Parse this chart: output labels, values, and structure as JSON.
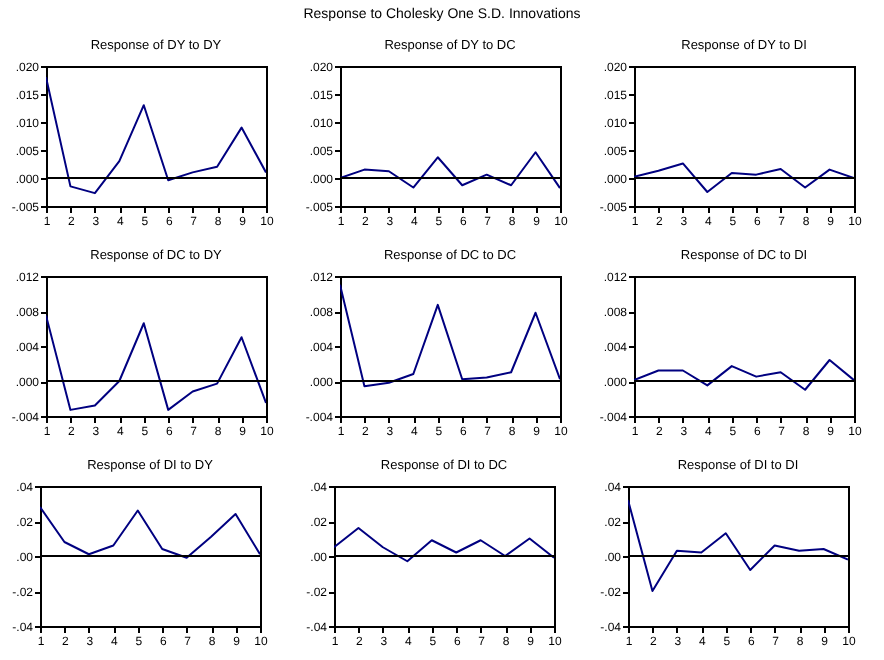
{
  "chart_data": [
    {
      "type": "line",
      "title": "Response of DY to DY",
      "annotations": [
        "Response to Cholesky One S.D. Innovations"
      ],
      "x": [
        1,
        2,
        3,
        4,
        5,
        6,
        7,
        8,
        9,
        10
      ],
      "xlim": [
        1,
        10
      ],
      "xticks": [
        1,
        2,
        3,
        4,
        5,
        6,
        7,
        8,
        9,
        10
      ],
      "ylim": [
        -0.005,
        0.02
      ],
      "yticks": [
        {
          "value": -0.005,
          "label": "-.005"
        },
        {
          "value": 0,
          "label": ".000"
        },
        {
          "value": 0.005,
          "label": ".005"
        },
        {
          "value": 0.01,
          "label": ".010"
        },
        {
          "value": 0.015,
          "label": ".015"
        },
        {
          "value": 0.02,
          "label": ".020"
        }
      ],
      "ref_lines": [
        {
          "axis": "y",
          "value": 0,
          "color": "#000000"
        }
      ],
      "series": [
        {
          "color": "#000080",
          "values": [
            0.018,
            -0.0015,
            -0.0027,
            0.003,
            0.013,
            -0.0004,
            0.001,
            0.002,
            0.009,
            0.001
          ]
        }
      ]
    },
    {
      "type": "line",
      "title": "Response of DY to DC",
      "x": [
        1,
        2,
        3,
        4,
        5,
        6,
        7,
        8,
        9,
        10
      ],
      "xlim": [
        1,
        10
      ],
      "xticks": [
        1,
        2,
        3,
        4,
        5,
        6,
        7,
        8,
        9,
        10
      ],
      "ylim": [
        -0.005,
        0.02
      ],
      "yticks": [
        {
          "value": -0.005,
          "label": "-.005"
        },
        {
          "value": 0,
          "label": ".000"
        },
        {
          "value": 0.005,
          "label": ".005"
        },
        {
          "value": 0.01,
          "label": ".010"
        },
        {
          "value": 0.015,
          "label": ".015"
        },
        {
          "value": 0.02,
          "label": ".020"
        }
      ],
      "ref_lines": [
        {
          "axis": "y",
          "value": 0,
          "color": "#000000"
        }
      ],
      "series": [
        {
          "color": "#000080",
          "values": [
            0.0,
            0.0015,
            0.0012,
            -0.0017,
            0.0037,
            -0.0013,
            0.0006,
            -0.0013,
            0.0046,
            -0.0018
          ]
        }
      ]
    },
    {
      "type": "line",
      "title": "Response of DY to DI",
      "x": [
        1,
        2,
        3,
        4,
        5,
        6,
        7,
        8,
        9,
        10
      ],
      "xlim": [
        1,
        10
      ],
      "xticks": [
        1,
        2,
        3,
        4,
        5,
        6,
        7,
        8,
        9,
        10
      ],
      "ylim": [
        -0.005,
        0.02
      ],
      "yticks": [
        {
          "value": -0.005,
          "label": "-.005"
        },
        {
          "value": 0,
          "label": ".000"
        },
        {
          "value": 0.005,
          "label": ".005"
        },
        {
          "value": 0.01,
          "label": ".010"
        },
        {
          "value": 0.015,
          "label": ".015"
        },
        {
          "value": 0.02,
          "label": ".020"
        }
      ],
      "ref_lines": [
        {
          "axis": "y",
          "value": 0,
          "color": "#000000"
        }
      ],
      "series": [
        {
          "color": "#000080",
          "values": [
            0.0002,
            0.0013,
            0.0026,
            -0.0025,
            0.0009,
            0.0006,
            0.0016,
            -0.0017,
            0.0015,
            0.0
          ]
        }
      ]
    },
    {
      "type": "line",
      "title": "Response of DC to DY",
      "x": [
        1,
        2,
        3,
        4,
        5,
        6,
        7,
        8,
        9,
        10
      ],
      "xlim": [
        1,
        10
      ],
      "xticks": [
        1,
        2,
        3,
        4,
        5,
        6,
        7,
        8,
        9,
        10
      ],
      "ylim": [
        -0.004,
        0.012
      ],
      "yticks": [
        {
          "value": -0.004,
          "label": "-.004"
        },
        {
          "value": 0,
          "label": ".000"
        },
        {
          "value": 0.004,
          "label": ".004"
        },
        {
          "value": 0.008,
          "label": ".008"
        },
        {
          "value": 0.012,
          "label": ".012"
        }
      ],
      "ref_lines": [
        {
          "axis": "y",
          "value": 0,
          "color": "#000000"
        }
      ],
      "series": [
        {
          "color": "#000080",
          "values": [
            0.0075,
            -0.0033,
            -0.0028,
            0.0,
            0.0066,
            -0.0033,
            -0.0012,
            -0.0003,
            0.005,
            -0.0025
          ]
        }
      ]
    },
    {
      "type": "line",
      "title": "Response of DC to DC",
      "x": [
        1,
        2,
        3,
        4,
        5,
        6,
        7,
        8,
        9,
        10
      ],
      "xlim": [
        1,
        10
      ],
      "xticks": [
        1,
        2,
        3,
        4,
        5,
        6,
        7,
        8,
        9,
        10
      ],
      "ylim": [
        -0.004,
        0.012
      ],
      "yticks": [
        {
          "value": -0.004,
          "label": "-.004"
        },
        {
          "value": 0,
          "label": ".000"
        },
        {
          "value": 0.004,
          "label": ".004"
        },
        {
          "value": 0.008,
          "label": ".008"
        },
        {
          "value": 0.012,
          "label": ".012"
        }
      ],
      "ref_lines": [
        {
          "axis": "y",
          "value": 0,
          "color": "#000000"
        }
      ],
      "series": [
        {
          "color": "#000080",
          "values": [
            0.011,
            -0.0006,
            -0.0002,
            0.0008,
            0.0087,
            0.0002,
            0.0004,
            0.001,
            0.0078,
            0.0002
          ]
        }
      ]
    },
    {
      "type": "line",
      "title": "Response of DC to DI",
      "x": [
        1,
        2,
        3,
        4,
        5,
        6,
        7,
        8,
        9,
        10
      ],
      "xlim": [
        1,
        10
      ],
      "xticks": [
        1,
        2,
        3,
        4,
        5,
        6,
        7,
        8,
        9,
        10
      ],
      "ylim": [
        -0.004,
        0.012
      ],
      "yticks": [
        {
          "value": -0.004,
          "label": "-.004"
        },
        {
          "value": 0,
          "label": ".000"
        },
        {
          "value": 0.004,
          "label": ".004"
        },
        {
          "value": 0.008,
          "label": ".008"
        },
        {
          "value": 0.012,
          "label": ".012"
        }
      ],
      "ref_lines": [
        {
          "axis": "y",
          "value": 0,
          "color": "#000000"
        }
      ],
      "series": [
        {
          "color": "#000080",
          "values": [
            0.0001,
            0.0012,
            0.0012,
            -0.0005,
            0.0017,
            0.0005,
            0.001,
            -0.001,
            0.0024,
            0.0001
          ]
        }
      ]
    },
    {
      "type": "line",
      "title": "Response of DI to DY",
      "x": [
        1,
        2,
        3,
        4,
        5,
        6,
        7,
        8,
        9,
        10
      ],
      "xlim": [
        1,
        10
      ],
      "xticks": [
        1,
        2,
        3,
        4,
        5,
        6,
        7,
        8,
        9,
        10
      ],
      "ylim": [
        -0.04,
        0.04
      ],
      "yticks": [
        {
          "value": -0.04,
          "label": "-.04"
        },
        {
          "value": -0.02,
          "label": "-.02"
        },
        {
          "value": 0,
          "label": ".00"
        },
        {
          "value": 0.02,
          "label": ".02"
        },
        {
          "value": 0.04,
          "label": ".04"
        }
      ],
      "ref_lines": [
        {
          "axis": "y",
          "value": 0,
          "color": "#000000"
        }
      ],
      "series": [
        {
          "color": "#000080",
          "values": [
            0.028,
            0.008,
            0.001,
            0.006,
            0.026,
            0.004,
            -0.001,
            0.011,
            0.024,
            0.001
          ]
        }
      ]
    },
    {
      "type": "line",
      "title": "Response of DI to DC",
      "x": [
        1,
        2,
        3,
        4,
        5,
        6,
        7,
        8,
        9,
        10
      ],
      "xlim": [
        1,
        10
      ],
      "xticks": [
        1,
        2,
        3,
        4,
        5,
        6,
        7,
        8,
        9,
        10
      ],
      "ylim": [
        -0.04,
        0.04
      ],
      "yticks": [
        {
          "value": -0.04,
          "label": "-.04"
        },
        {
          "value": -0.02,
          "label": "-.02"
        },
        {
          "value": 0,
          "label": ".00"
        },
        {
          "value": 0.02,
          "label": ".02"
        },
        {
          "value": 0.04,
          "label": ".04"
        }
      ],
      "ref_lines": [
        {
          "axis": "y",
          "value": 0,
          "color": "#000000"
        }
      ],
      "series": [
        {
          "color": "#000080",
          "values": [
            0.005,
            0.016,
            0.005,
            -0.003,
            0.009,
            0.002,
            0.009,
            0.0,
            0.01,
            -0.001
          ]
        }
      ]
    },
    {
      "type": "line",
      "title": "Response of DI to DI",
      "x": [
        1,
        2,
        3,
        4,
        5,
        6,
        7,
        8,
        9,
        10
      ],
      "xlim": [
        1,
        10
      ],
      "xticks": [
        1,
        2,
        3,
        4,
        5,
        6,
        7,
        8,
        9,
        10
      ],
      "ylim": [
        -0.04,
        0.04
      ],
      "yticks": [
        {
          "value": -0.04,
          "label": "-.04"
        },
        {
          "value": -0.02,
          "label": "-.02"
        },
        {
          "value": 0,
          "label": ".00"
        },
        {
          "value": 0.02,
          "label": ".02"
        },
        {
          "value": 0.04,
          "label": ".04"
        }
      ],
      "ref_lines": [
        {
          "axis": "y",
          "value": 0,
          "color": "#000000"
        }
      ],
      "series": [
        {
          "color": "#000080",
          "values": [
            0.032,
            -0.02,
            0.003,
            0.002,
            0.013,
            -0.008,
            0.006,
            0.003,
            0.004,
            -0.002
          ]
        }
      ]
    }
  ]
}
